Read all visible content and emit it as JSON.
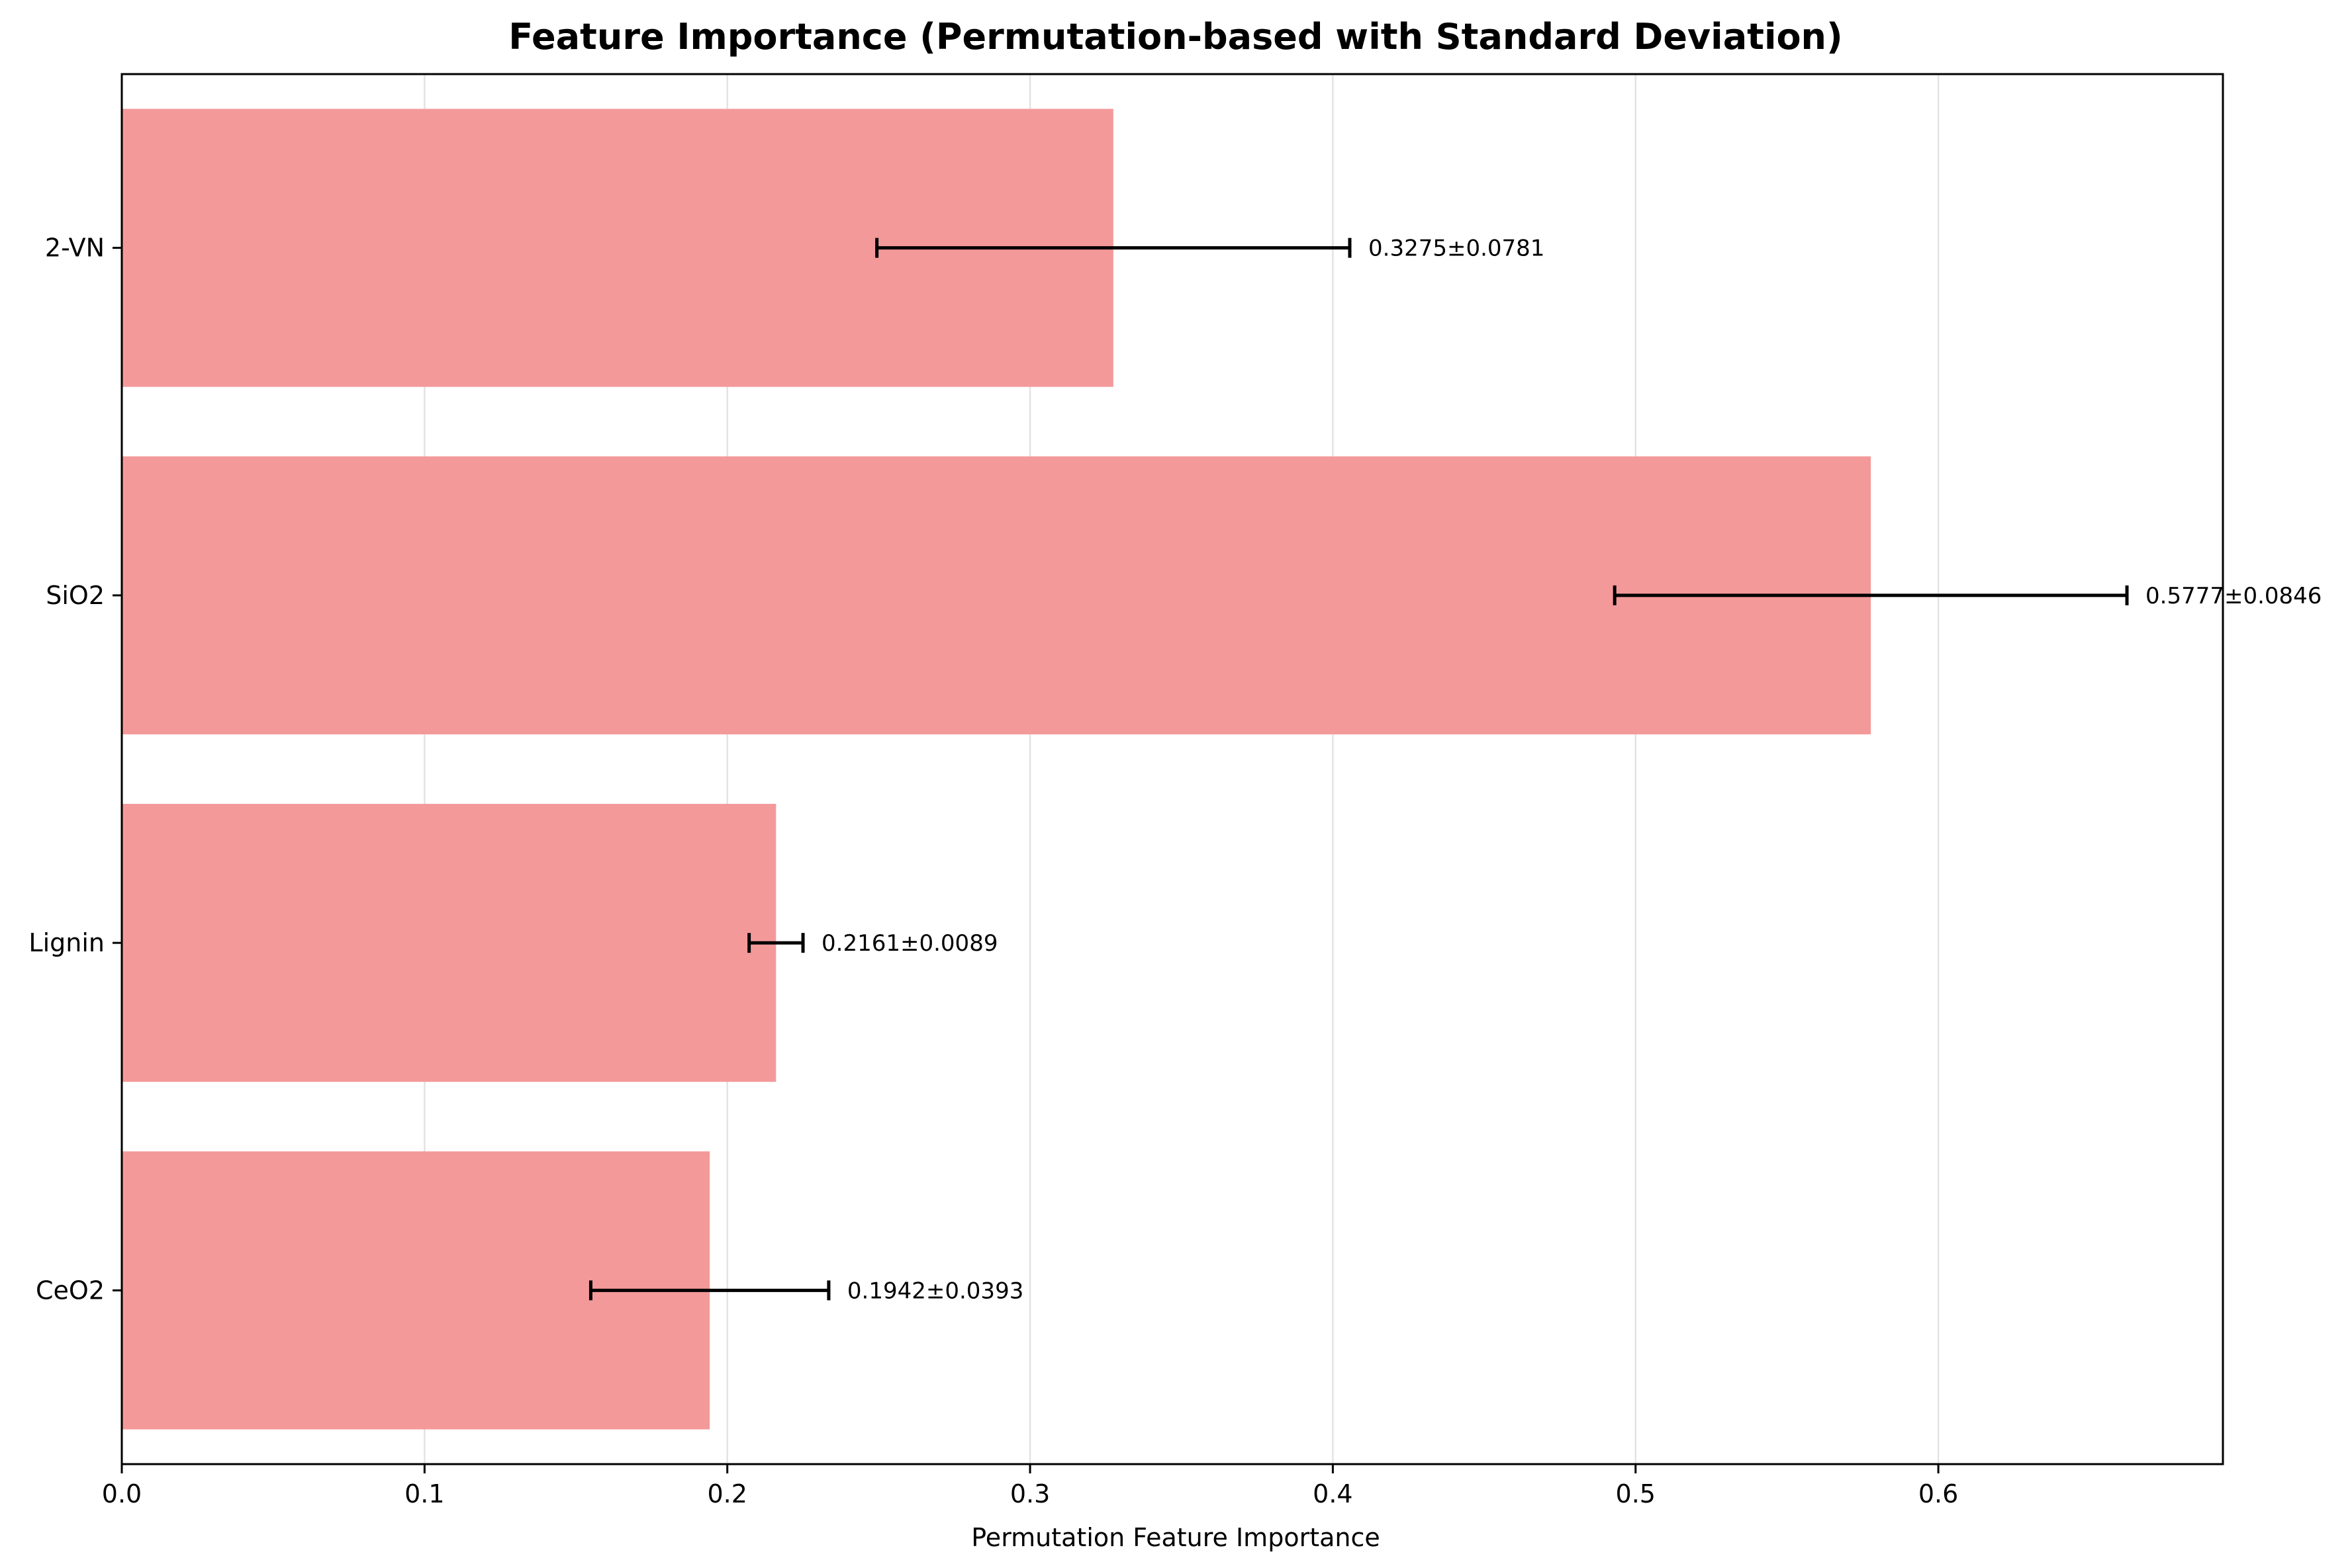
{
  "chart_data": {
    "type": "bar",
    "orientation": "horizontal",
    "title": "Feature Importance (Permutation-based with Standard Deviation)",
    "xlabel": "Permutation Feature Importance",
    "ylabel": "",
    "xlim": [
      0,
      0.694
    ],
    "xticks": [
      0.0,
      0.1,
      0.2,
      0.3,
      0.4,
      0.5,
      0.6
    ],
    "xtick_labels": [
      "0.0",
      "0.1",
      "0.2",
      "0.3",
      "0.4",
      "0.5",
      "0.6"
    ],
    "grid": "x",
    "categories": [
      "2-VN",
      "SiO2",
      "Lignin",
      "CeO2"
    ],
    "values": [
      0.3275,
      0.5777,
      0.2161,
      0.1942
    ],
    "errors": [
      0.0781,
      0.0846,
      0.0089,
      0.0393
    ],
    "value_labels": [
      "0.3275±0.0781",
      "0.5777±0.0846",
      "0.2161±0.0089",
      "0.1942±0.0393"
    ],
    "colors": {
      "bar": "#f4999a",
      "error": "#000000",
      "grid": "#e3e3e3"
    }
  }
}
